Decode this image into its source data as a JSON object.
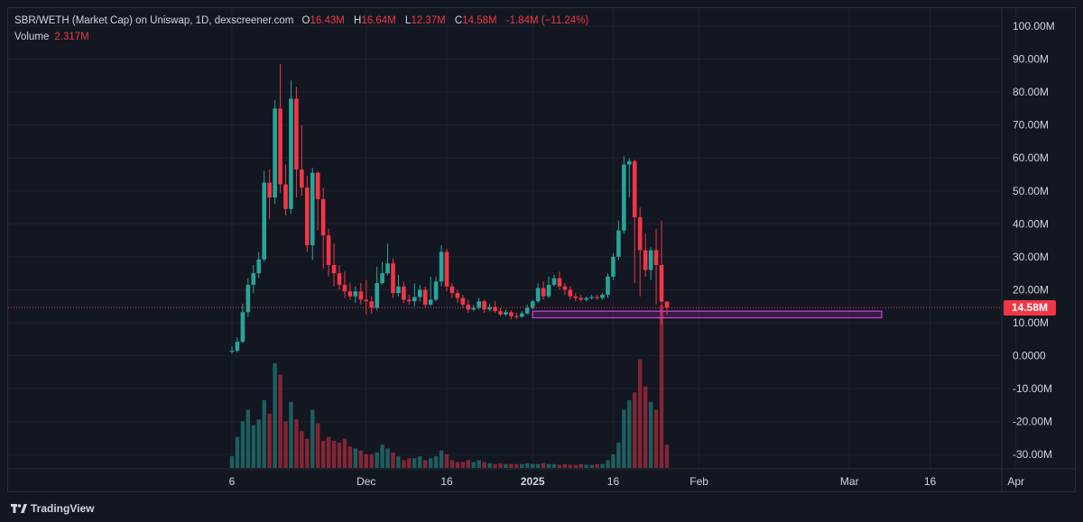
{
  "header": {
    "symbol": "SBR/WETH (Market Cap) on Uniswap, 1D, dexscreener.com",
    "o_label": "O",
    "o_value": "16.43M",
    "h_label": "H",
    "h_value": "16.64M",
    "l_label": "L",
    "l_value": "12.37M",
    "c_label": "C",
    "c_value": "14.58M",
    "change": "-1.84M (−11.24%)",
    "volume_label": "Volume",
    "volume_value": "2.317M"
  },
  "price_badge": "14.58M",
  "brand": {
    "name": "TradingView",
    "icon": "tradingview-logo-icon"
  },
  "colors": {
    "background": "#131722",
    "up": "#26a69a",
    "down": "#f23645",
    "volume_up": "#26a69a",
    "volume_down": "#f23645",
    "axis_text": "#d1d4dc",
    "grid": "#1e222d",
    "zone": "#9c27b0",
    "price_line": "#f23645"
  },
  "chart_data": {
    "type": "candlestick",
    "interval": "1D",
    "grid": true,
    "y_ticks": [
      "100.00M",
      "90.00M",
      "80.00M",
      "70.00M",
      "60.00M",
      "50.00M",
      "40.00M",
      "30.00M",
      "20.00M",
      "10.00M",
      "0.0000",
      "-10.00M",
      "-20.00M",
      "-30.00M"
    ],
    "y_tick_values": [
      100,
      90,
      80,
      70,
      60,
      50,
      40,
      30,
      20,
      10,
      0,
      -10,
      -20,
      -30
    ],
    "ylim": [
      -33,
      104
    ],
    "x_ticks": [
      {
        "label": "6",
        "day": 0
      },
      {
        "label": "Dec",
        "day": 25
      },
      {
        "label": "16",
        "day": 40
      },
      {
        "label": "2025",
        "day": 56
      },
      {
        "label": "16",
        "day": 71
      },
      {
        "label": "Feb",
        "day": 87
      },
      {
        "label": "Mar",
        "day": 115
      },
      {
        "label": "16",
        "day": 130
      },
      {
        "label": "Apr",
        "day": 146
      }
    ],
    "x_range_days": [
      -2,
      151
    ],
    "current_price": 14.58,
    "zone": {
      "from_day": 56,
      "to_day": 121,
      "low": 11.5,
      "high": 13.5
    },
    "candles": [
      [
        1.2,
        1.5,
        2.8,
        0.5
      ],
      [
        1.5,
        4.2,
        5.5,
        1.0
      ],
      [
        4.2,
        13.2,
        15.8,
        3.8
      ],
      [
        13.2,
        21.5,
        23.5,
        11.8
      ],
      [
        21.5,
        25.0,
        27.5,
        19.0
      ],
      [
        25.0,
        29.2,
        31.5,
        23.5
      ],
      [
        29.2,
        52.5,
        56.0,
        28.5
      ],
      [
        52.5,
        48.0,
        56.5,
        41.5
      ],
      [
        48.0,
        75.0,
        77.5,
        46.0
      ],
      [
        75.0,
        52.0,
        88.5,
        49.5
      ],
      [
        52.0,
        44.5,
        58.0,
        42.5
      ],
      [
        44.5,
        78.0,
        83.5,
        43.0
      ],
      [
        78.0,
        56.5,
        81.5,
        48.0
      ],
      [
        56.5,
        51.0,
        70.0,
        48.5
      ],
      [
        51.0,
        33.5,
        54.5,
        31.5
      ],
      [
        33.5,
        55.5,
        57.0,
        29.0
      ],
      [
        55.5,
        47.5,
        56.0,
        38.0
      ],
      [
        47.5,
        36.5,
        51.0,
        26.5
      ],
      [
        36.5,
        27.5,
        38.5,
        24.0
      ],
      [
        27.5,
        25.0,
        34.0,
        21.0
      ],
      [
        25.0,
        21.5,
        27.5,
        20.0
      ],
      [
        21.5,
        19.5,
        25.5,
        17.5
      ],
      [
        19.5,
        18.0,
        22.0,
        17.0
      ],
      [
        18.0,
        19.5,
        21.0,
        16.0
      ],
      [
        19.5,
        17.0,
        22.0,
        15.5
      ],
      [
        17.0,
        16.5,
        23.0,
        12.5
      ],
      [
        16.5,
        14.5,
        18.0,
        12.8
      ],
      [
        14.5,
        22.0,
        27.0,
        13.8
      ],
      [
        22.0,
        25.0,
        28.5,
        21.5
      ],
      [
        25.0,
        28.0,
        34.0,
        24.5
      ],
      [
        28.0,
        19.0,
        29.5,
        17.5
      ],
      [
        19.0,
        21.0,
        24.5,
        18.0
      ],
      [
        21.0,
        17.0,
        22.5,
        16.0
      ],
      [
        17.0,
        16.5,
        18.5,
        15.5
      ],
      [
        16.5,
        17.8,
        22.0,
        15.0
      ],
      [
        17.8,
        20.0,
        21.5,
        16.5
      ],
      [
        20.0,
        15.5,
        21.0,
        14.5
      ],
      [
        15.5,
        17.0,
        24.0,
        15.0
      ],
      [
        17.0,
        22.5,
        24.0,
        16.5
      ],
      [
        22.5,
        31.5,
        33.5,
        21.0
      ],
      [
        31.5,
        21.0,
        32.5,
        19.5
      ],
      [
        21.0,
        19.0,
        22.0,
        17.5
      ],
      [
        19.0,
        17.5,
        20.0,
        16.0
      ],
      [
        17.5,
        15.5,
        18.5,
        14.5
      ],
      [
        15.5,
        14.0,
        17.0,
        13.0
      ],
      [
        14.0,
        14.5,
        15.5,
        13.5
      ],
      [
        14.5,
        16.5,
        17.5,
        14.0
      ],
      [
        16.5,
        14.0,
        17.0,
        13.0
      ],
      [
        14.0,
        14.8,
        15.8,
        13.5
      ],
      [
        14.8,
        13.5,
        16.5,
        13.0
      ],
      [
        13.5,
        12.5,
        14.5,
        12.0
      ],
      [
        12.5,
        13.2,
        14.0,
        12.0
      ],
      [
        13.2,
        12.0,
        13.8,
        11.0
      ],
      [
        12.0,
        11.8,
        13.0,
        11.0
      ],
      [
        11.8,
        12.8,
        13.5,
        11.5
      ],
      [
        12.8,
        14.5,
        15.5,
        12.5
      ],
      [
        14.5,
        16.5,
        17.0,
        14.0
      ],
      [
        16.5,
        20.5,
        22.0,
        16.0
      ],
      [
        20.5,
        18.0,
        22.5,
        17.0
      ],
      [
        18.0,
        21.5,
        24.0,
        17.5
      ],
      [
        21.5,
        23.5,
        24.5,
        21.0
      ],
      [
        23.5,
        21.0,
        25.5,
        20.0
      ],
      [
        21.0,
        20.0,
        22.0,
        18.5
      ],
      [
        20.0,
        18.0,
        21.0,
        17.0
      ],
      [
        18.0,
        17.5,
        19.0,
        16.5
      ],
      [
        17.5,
        17.0,
        18.5,
        16.5
      ],
      [
        17.0,
        17.5,
        18.0,
        16.5
      ],
      [
        17.5,
        17.8,
        18.5,
        17.0
      ],
      [
        17.8,
        17.5,
        18.5,
        17.0
      ],
      [
        17.5,
        18.5,
        19.0,
        17.0
      ],
      [
        18.5,
        24.0,
        25.0,
        17.5
      ],
      [
        24.0,
        30.0,
        31.0,
        23.0
      ],
      [
        30.0,
        38.0,
        41.0,
        29.0
      ],
      [
        38.0,
        58.0,
        60.5,
        37.0
      ],
      [
        58.0,
        59.0,
        60.0,
        48.0
      ],
      [
        59.0,
        42.0,
        59.5,
        22.0
      ],
      [
        42.0,
        32.0,
        45.0,
        18.0
      ],
      [
        32.0,
        26.0,
        37.0,
        24.0
      ],
      [
        26.0,
        32.0,
        33.0,
        23.0
      ],
      [
        32.0,
        27.5,
        38.5,
        15.5
      ],
      [
        27.5,
        16.4,
        41.0,
        9.5
      ],
      [
        16.4,
        14.6,
        16.6,
        12.4
      ]
    ],
    "volumes": [
      3.0,
      8.0,
      12.0,
      15.0,
      11.0,
      12.5,
      17.5,
      14.0,
      27.0,
      24.0,
      12.0,
      17.0,
      12.5,
      9.5,
      7.5,
      15.0,
      11.5,
      7.0,
      8.0,
      7.0,
      6.5,
      7.5,
      5.5,
      5.0,
      4.5,
      3.5,
      3.5,
      4.0,
      6.0,
      5.0,
      4.0,
      3.0,
      2.0,
      2.5,
      2.5,
      3.0,
      2.0,
      2.5,
      3.0,
      4.5,
      3.5,
      2.0,
      1.5,
      1.5,
      2.0,
      1.5,
      2.0,
      1.5,
      1.2,
      1.0,
      1.2,
      1.0,
      1.0,
      1.0,
      1.0,
      1.2,
      1.0,
      1.0,
      1.2,
      1.0,
      1.0,
      0.8,
      1.0,
      0.8,
      0.8,
      1.0,
      0.8,
      0.8,
      1.0,
      1.0,
      2.0,
      3.5,
      6.5,
      15.0,
      17.5,
      19.5,
      28.0,
      21.0,
      17.0,
      15.0,
      42.0,
      6.0
    ]
  }
}
